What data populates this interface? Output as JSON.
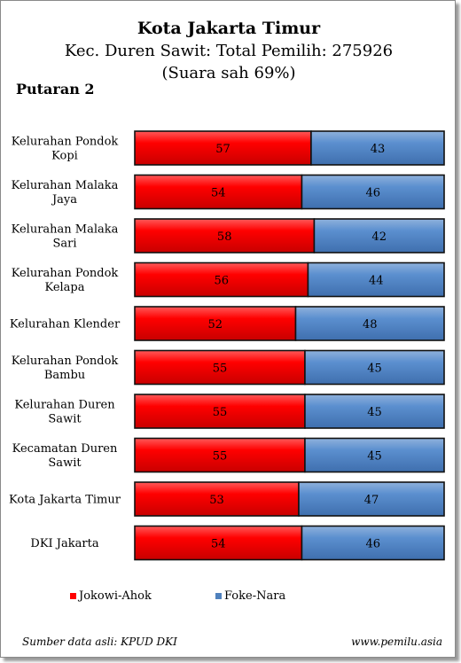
{
  "title": "Kota Jakarta Timur",
  "subtitle_line1": "Kec. Duren Sawit: Total Pemilih: 275926",
  "subtitle_line2": "(Suara sah 69%)",
  "round_label": "Putaran 2",
  "source": "Sumber data asli: KPUD DKI",
  "website": "www.pemilu.asia",
  "colors": {
    "jokowi": "#ff0000",
    "foke": "#4f81bd"
  },
  "chart_data": {
    "type": "bar",
    "orientation": "horizontal",
    "stacked": "percent",
    "categories": [
      [
        "Kelurahan Pondok",
        "Kopi"
      ],
      [
        "Kelurahan Malaka",
        "Jaya"
      ],
      [
        "Kelurahan Malaka",
        "Sari"
      ],
      [
        "Kelurahan Pondok",
        "Kelapa"
      ],
      [
        "Kelurahan Klender"
      ],
      [
        "Kelurahan Pondok",
        "Bambu"
      ],
      [
        "Kelurahan Duren",
        "Sawit"
      ],
      [
        "Kecamatan Duren",
        "Sawit"
      ],
      [
        "Kota Jakarta Timur"
      ],
      [
        "DKI Jakarta"
      ]
    ],
    "series": [
      {
        "name": "Jokowi-Ahok",
        "values": [
          57,
          54,
          58,
          56,
          52,
          55,
          55,
          55,
          53,
          54
        ]
      },
      {
        "name": "Foke-Nara",
        "values": [
          43,
          46,
          42,
          44,
          48,
          45,
          45,
          45,
          47,
          46
        ]
      }
    ],
    "xlim": [
      0,
      100
    ],
    "legend_position": "bottom",
    "grid": false
  }
}
